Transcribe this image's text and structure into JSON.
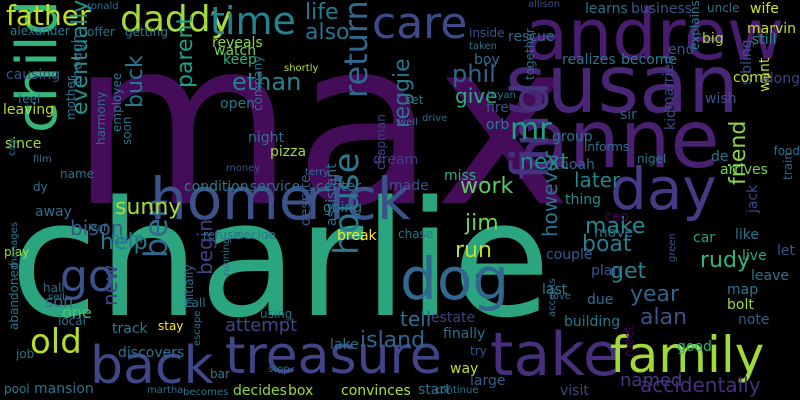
{
  "palette": {
    "purple_dark": "#450c5a",
    "purple": "#482575",
    "indigo": "#443b84",
    "blue": "#3b528b",
    "steel": "#31688e",
    "teal": "#277f8e",
    "cyan": "#21918c",
    "sea": "#1fa187",
    "green": "#29b47a",
    "lime": "#5ec962",
    "yellowgreen": "#a0da39",
    "yellow": "#d8e219"
  },
  "words": [
    {
      "text": "max",
      "color": "#450c5a"
    },
    {
      "text": "charlie",
      "color": "#2ba57f"
    },
    {
      "text": "susan",
      "color": "#482575"
    },
    {
      "text": "anne",
      "color": "#4a2072"
    },
    {
      "text": "andrew",
      "color": "#481d6f"
    },
    {
      "text": "home",
      "color": "#3b528b"
    },
    {
      "text": "rick",
      "color": "#3b528b"
    },
    {
      "text": "treasure",
      "color": "#414487"
    },
    {
      "text": "take",
      "color": "#46307e"
    },
    {
      "text": "back",
      "color": "#404688"
    },
    {
      "text": "family",
      "color": "#a0da39"
    },
    {
      "text": "dog",
      "color": "#31688e"
    },
    {
      "text": "day",
      "color": "#443b84"
    },
    {
      "text": "find",
      "color": "#46337f"
    },
    {
      "text": "child",
      "color": "#35b779"
    },
    {
      "text": "daddy",
      "color": "#a5db36"
    },
    {
      "text": "care",
      "color": "#3e4a89"
    },
    {
      "text": "time",
      "color": "#25838e"
    },
    {
      "text": "father",
      "color": "#c2df23"
    },
    {
      "text": "life",
      "color": "#2a788e"
    },
    {
      "text": "also",
      "color": "#2c728e"
    },
    {
      "text": "go",
      "color": "#3b528b"
    },
    {
      "text": "old",
      "color": "#b5de2b"
    },
    {
      "text": "ben",
      "color": "#31688e"
    },
    {
      "text": "house",
      "color": "#2a778e"
    },
    {
      "text": "return",
      "color": "#31688e"
    },
    {
      "text": "reggie",
      "color": "#2c738e"
    },
    {
      "text": "mr",
      "color": "#1fa187"
    },
    {
      "text": "phil",
      "color": "#33638d"
    },
    {
      "text": "give",
      "color": "#2ab07f"
    },
    {
      "text": "ethan",
      "color": "#26828e"
    },
    {
      "text": "parent",
      "color": "#1f9e89"
    },
    {
      "text": "buck",
      "color": "#2a768e"
    },
    {
      "text": "eventually",
      "color": "#21918c"
    },
    {
      "text": "sunny",
      "color": "#a8db34"
    },
    {
      "text": "help",
      "color": "#287c8e"
    },
    {
      "text": "bison",
      "color": "#38588c"
    },
    {
      "text": "next",
      "color": "#228c8d"
    },
    {
      "text": "work",
      "color": "#5ec962"
    },
    {
      "text": "run",
      "color": "#bddf26"
    },
    {
      "text": "jim",
      "color": "#73d056"
    },
    {
      "text": "later",
      "color": "#25848e"
    },
    {
      "text": "make",
      "color": "#238a8d"
    },
    {
      "text": "boat",
      "color": "#287d8e"
    },
    {
      "text": "friend",
      "color": "#8bd646"
    },
    {
      "text": "get",
      "color": "#277f8e"
    },
    {
      "text": "year",
      "color": "#33638d"
    },
    {
      "text": "alan",
      "color": "#3b528b"
    },
    {
      "text": "rudy",
      "color": "#31b57b"
    },
    {
      "text": "however",
      "color": "#2c728e"
    },
    {
      "text": "island",
      "color": "#32658e"
    },
    {
      "text": "tell",
      "color": "#2d708e"
    },
    {
      "text": "new",
      "color": "#414487"
    },
    {
      "text": "begin",
      "color": "#424086"
    },
    {
      "text": "attempt",
      "color": "#404688"
    },
    {
      "text": "son",
      "color": "#2e6e8e"
    },
    {
      "text": "one",
      "color": "#4ac16d"
    },
    {
      "text": "lake",
      "color": "#2e6f8e"
    },
    {
      "text": "named",
      "color": "#443983"
    },
    {
      "text": "way",
      "color": "#bddf26"
    },
    {
      "text": "large",
      "color": "#38598c"
    },
    {
      "text": "accidentally",
      "color": "#472f7d"
    },
    {
      "text": "convinces",
      "color": "#b5de2b"
    },
    {
      "text": "decides",
      "color": "#8bd646"
    },
    {
      "text": "box",
      "color": "#a2da37"
    },
    {
      "text": "start",
      "color": "#2d708e"
    },
    {
      "text": "visit",
      "color": "#3f4788"
    },
    {
      "text": "good",
      "color": "#2ab07f"
    },
    {
      "text": "note",
      "color": "#375a8c"
    },
    {
      "text": "map",
      "color": "#29798e"
    },
    {
      "text": "bolt",
      "color": "#9fda3a"
    },
    {
      "text": "leave",
      "color": "#2d718e"
    },
    {
      "text": "like",
      "color": "#2c738e"
    },
    {
      "text": "live",
      "color": "#25ab82"
    },
    {
      "text": "car",
      "color": "#20a386"
    },
    {
      "text": "jack",
      "color": "#3f4889"
    },
    {
      "text": "arrives",
      "color": "#73d056"
    },
    {
      "text": "train",
      "color": "#355f8d"
    },
    {
      "text": "let",
      "color": "#3b528b"
    },
    {
      "text": "de",
      "color": "#2d708e"
    },
    {
      "text": "kid",
      "color": "#3f4889"
    },
    {
      "text": "food",
      "color": "#2e6e8e"
    },
    {
      "text": "want",
      "color": "#b5de2b"
    },
    {
      "text": "sibling",
      "color": "#3b528b"
    },
    {
      "text": "come",
      "color": "#bddf26"
    },
    {
      "text": "along",
      "color": "#424086"
    },
    {
      "text": "marvin",
      "color": "#c8e020"
    },
    {
      "text": "uncle",
      "color": "#2e6e8e"
    },
    {
      "text": "wife",
      "color": "#d8e219"
    },
    {
      "text": "still",
      "color": "#228c8d"
    },
    {
      "text": "big",
      "color": "#aadc32"
    },
    {
      "text": "end",
      "color": "#38588c"
    },
    {
      "text": "explains",
      "color": "#2a778e"
    },
    {
      "text": "wish",
      "color": "#3b528b"
    },
    {
      "text": "married",
      "color": "#404688"
    },
    {
      "text": "sir",
      "color": "#32658e"
    },
    {
      "text": "realizes",
      "color": "#2c728e"
    },
    {
      "text": "become",
      "color": "#2a788e"
    },
    {
      "text": "learns",
      "color": "#2d708e"
    },
    {
      "text": "business",
      "color": "#3b528b"
    },
    {
      "text": "allison",
      "color": "#3e4a89"
    },
    {
      "text": "rescue",
      "color": "#31688e"
    },
    {
      "text": "taken",
      "color": "#2c728e"
    },
    {
      "text": "together",
      "color": "#2e6e8e"
    },
    {
      "text": "boy",
      "color": "#2c728e"
    },
    {
      "text": "inside",
      "color": "#3b528b"
    },
    {
      "text": "bryan",
      "color": "#2e6e8e"
    },
    {
      "text": "fire",
      "color": "#3b528b"
    },
    {
      "text": "orb",
      "color": "#2a788e"
    },
    {
      "text": "drive",
      "color": "#31688e"
    },
    {
      "text": "group",
      "color": "#2c728e"
    },
    {
      "text": "informs",
      "color": "#2e6e8e"
    },
    {
      "text": "noah",
      "color": "#33638d"
    },
    {
      "text": "nigel",
      "color": "#2a788e"
    },
    {
      "text": "dream",
      "color": "#424086"
    },
    {
      "text": "miss",
      "color": "#2ab07f"
    },
    {
      "text": "thing",
      "color": "#228c8d"
    },
    {
      "text": "ceo",
      "color": "#440154"
    },
    {
      "text": "move",
      "color": "#2e6e8e"
    },
    {
      "text": "couple",
      "color": "#38588c"
    },
    {
      "text": "plan",
      "color": "#3b528b"
    },
    {
      "text": "last",
      "color": "#2a788e"
    },
    {
      "text": "due",
      "color": "#2c728e"
    },
    {
      "text": "building",
      "color": "#2a788e"
    },
    {
      "text": "estate",
      "color": "#424086"
    },
    {
      "text": "finally",
      "color": "#2e6e8e"
    },
    {
      "text": "try",
      "color": "#3b528b"
    },
    {
      "text": "meet",
      "color": "#440154"
    },
    {
      "text": "continue",
      "color": "#2a788e"
    },
    {
      "text": "accepts",
      "color": "#2c728e"
    },
    {
      "text": "love",
      "color": "#2e6e8e"
    },
    {
      "text": "green",
      "color": "#3b528b"
    },
    {
      "text": "break",
      "color": "#fde725"
    },
    {
      "text": "chase",
      "color": "#2c728e"
    },
    {
      "text": "chapman",
      "color": "#424086"
    },
    {
      "text": "assistant",
      "color": "#2e6e8e"
    },
    {
      "text": "despite",
      "color": "#38588c"
    },
    {
      "text": "going",
      "color": "#2a788e"
    },
    {
      "text": "made",
      "color": "#3b528b"
    },
    {
      "text": "center",
      "color": "#2c728e"
    },
    {
      "text": "service",
      "color": "#2e6e8e"
    },
    {
      "text": "condition",
      "color": "#2a788e"
    },
    {
      "text": "money",
      "color": "#3b528b"
    },
    {
      "text": "terry",
      "color": "#2c728e"
    },
    {
      "text": "pizza",
      "color": "#a0da39"
    },
    {
      "text": "night",
      "color": "#2e6e8e"
    },
    {
      "text": "company",
      "color": "#2c728e"
    },
    {
      "text": "open",
      "color": "#2a788e"
    },
    {
      "text": "shortly",
      "color": "#b5de2b"
    },
    {
      "text": "reveals",
      "color": "#8bd646"
    },
    {
      "text": "watch",
      "color": "#73d056"
    },
    {
      "text": "keep",
      "color": "#2ab07f"
    },
    {
      "text": "getting",
      "color": "#2a788e"
    },
    {
      "text": "offer",
      "color": "#2c728e"
    },
    {
      "text": "ronald",
      "color": "#2e6e8e"
    },
    {
      "text": "alexander",
      "color": "#2a788e"
    },
    {
      "text": "causing",
      "color": "#3b528b"
    },
    {
      "text": "feel",
      "color": "#2c728e"
    },
    {
      "text": "leaving",
      "color": "#b5de2b"
    },
    {
      "text": "though",
      "color": "#2e6e8e"
    },
    {
      "text": "mother",
      "color": "#2a788e"
    },
    {
      "text": "since",
      "color": "#a0da39"
    },
    {
      "text": "film",
      "color": "#2c728e"
    },
    {
      "text": "harmony",
      "color": "#2e6e8e"
    },
    {
      "text": "employee",
      "color": "#2a788e"
    },
    {
      "text": "soon",
      "color": "#2c728e"
    },
    {
      "text": "name",
      "color": "#2e6e8e"
    },
    {
      "text": "city",
      "color": "#2a788e"
    },
    {
      "text": "dy",
      "color": "#2c728e"
    },
    {
      "text": "away",
      "color": "#2e6e8e"
    },
    {
      "text": "play",
      "color": "#a0da39"
    },
    {
      "text": "leaf",
      "color": "#2a788e"
    },
    {
      "text": "burn",
      "color": "#2c728e"
    },
    {
      "text": "hall",
      "color": "#2e6e8e"
    },
    {
      "text": "manages",
      "color": "#2a788e"
    },
    {
      "text": "sell",
      "color": "#2c728e"
    },
    {
      "text": "local",
      "color": "#2e6e8e"
    },
    {
      "text": "pool",
      "color": "#2a788e"
    },
    {
      "text": "mansion",
      "color": "#2c728e"
    },
    {
      "text": "job",
      "color": "#2e6e8e"
    },
    {
      "text": "abandoned",
      "color": "#2a788e"
    },
    {
      "text": "discovers",
      "color": "#2c728e"
    },
    {
      "text": "initially",
      "color": "#2e6e8e"
    },
    {
      "text": "track",
      "color": "#2a788e"
    },
    {
      "text": "call",
      "color": "#2c728e"
    },
    {
      "text": "refuse",
      "color": "#2e6e8e"
    },
    {
      "text": "decide",
      "color": "#2a788e"
    },
    {
      "text": "running",
      "color": "#2c728e"
    },
    {
      "text": "stay",
      "color": "#fde725"
    },
    {
      "text": "using",
      "color": "#2e6e8e"
    },
    {
      "text": "bar",
      "color": "#2a788e"
    },
    {
      "text": "stop",
      "color": "#2c728e"
    },
    {
      "text": "martha",
      "color": "#2e6e8e"
    },
    {
      "text": "becomes",
      "color": "#2a788e"
    },
    {
      "text": "escape",
      "color": "#2c728e"
    },
    {
      "text": "well",
      "color": "#2e6e8e"
    },
    {
      "text": "set",
      "color": "#2a788e"
    }
  ]
}
